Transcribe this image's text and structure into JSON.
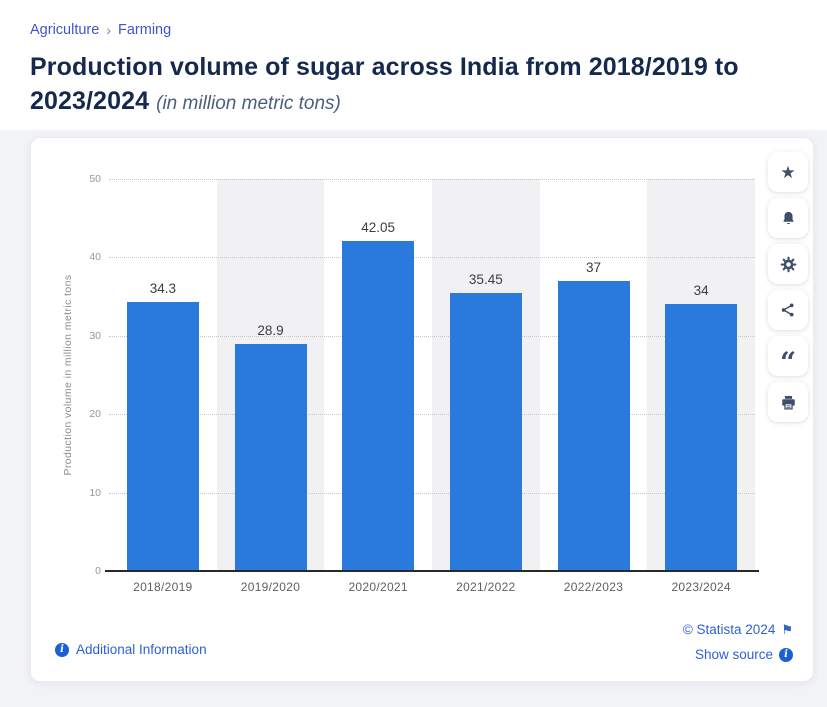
{
  "breadcrumb": {
    "items": [
      {
        "label": "Agriculture"
      },
      {
        "label": "Farming"
      }
    ],
    "separator": "›"
  },
  "title": {
    "main": "Production volume of sugar across India from 2018/2019 to 2023/2024",
    "subtitle": "(in million metric tons)"
  },
  "chart_data": {
    "type": "bar",
    "title": "Production volume of sugar across India from 2018/2019 to 2023/2024",
    "categories": [
      "2018/2019",
      "2019/2020",
      "2020/2021",
      "2021/2022",
      "2022/2023",
      "2023/2024"
    ],
    "values": [
      34.3,
      28.9,
      42.05,
      35.45,
      37,
      34
    ],
    "value_labels": [
      "34.3",
      "28.9",
      "42.05",
      "35.45",
      "37",
      "34"
    ],
    "xlabel": "",
    "ylabel": "Production volume in million metric tons",
    "ylim": [
      0,
      50
    ],
    "yticks": [
      0,
      10,
      20,
      30,
      40,
      50
    ],
    "grid": "horizontal-dotted",
    "legend": "none",
    "bar_color": "#2a7ade",
    "alt_column_band_color": "#f1f1f4"
  },
  "toolbar": {
    "buttons": [
      {
        "name": "favorite",
        "icon": "star-icon"
      },
      {
        "name": "alert",
        "icon": "bell-icon"
      },
      {
        "name": "settings",
        "icon": "gear-icon"
      },
      {
        "name": "share",
        "icon": "share-icon"
      },
      {
        "name": "cite",
        "icon": "quote-icon"
      },
      {
        "name": "print",
        "icon": "print-icon"
      }
    ]
  },
  "footer": {
    "additional_information": "Additional Information",
    "copyright": "© Statista 2024",
    "show_source": "Show source"
  },
  "colors": {
    "bar": "#2a7ade",
    "accent_link": "#2f62d0",
    "breadcrumb_link": "#4055c8",
    "title_text": "#15294f",
    "icon": "#3d4f6b",
    "band": "#f1f1f4"
  }
}
